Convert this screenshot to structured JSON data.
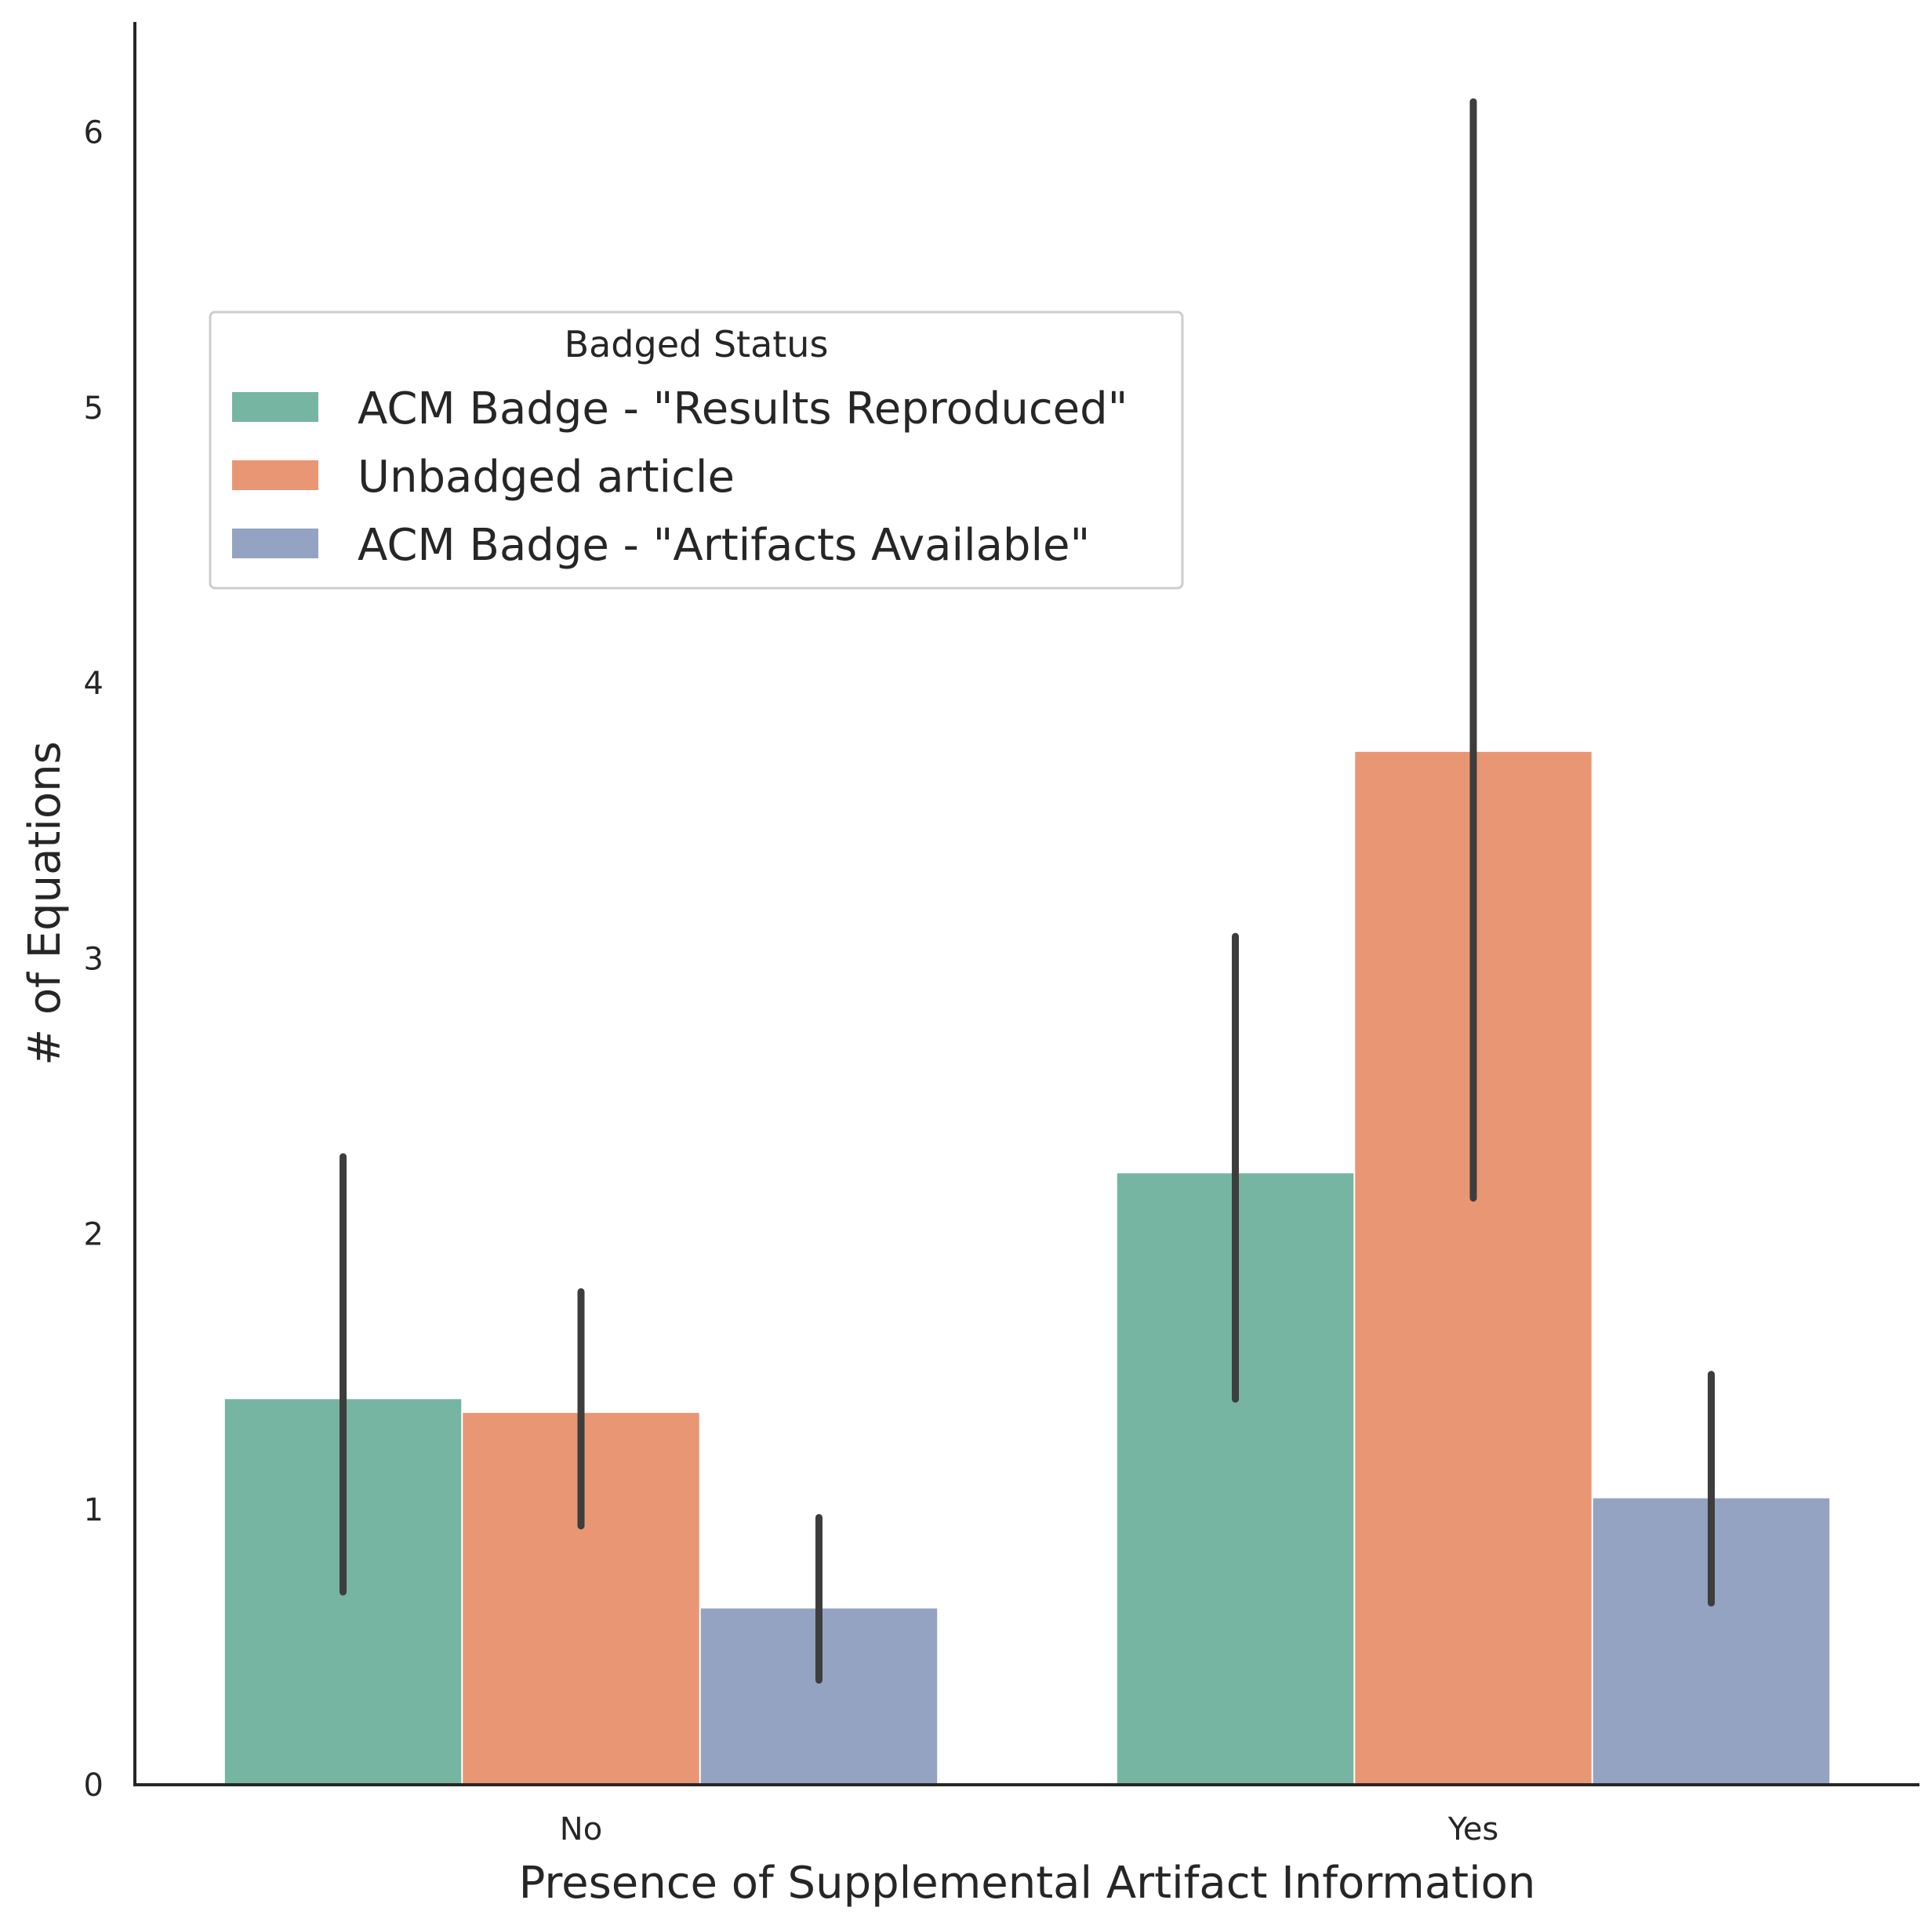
{
  "chart_data": {
    "type": "bar",
    "categories": [
      "No",
      "Yes"
    ],
    "xlabel": "Presence of Supplemental Artifact Information",
    "ylabel": "# of Equations",
    "ylim": [
      0,
      6.4
    ],
    "yticks": [
      0,
      1,
      2,
      3,
      4,
      5,
      6
    ],
    "grid": false,
    "legend": {
      "title": "Badged Status",
      "placement": "upper-left"
    },
    "series": [
      {
        "name": "ACM Badge - \"Results Reproduced\"",
        "color": "#76b5a1",
        "values": [
          1.4,
          2.22
        ],
        "error_low": [
          0.7,
          1.4
        ],
        "error_high": [
          2.28,
          3.08
        ]
      },
      {
        "name": "Unbadged article",
        "color": "#e89674",
        "values": [
          1.35,
          3.75
        ],
        "error_low": [
          0.94,
          2.13
        ],
        "error_high": [
          1.79,
          6.11
        ]
      },
      {
        "name": "ACM Badge - \"Artifacts Available\"",
        "color": "#94a3c2",
        "values": [
          0.64,
          1.04
        ],
        "error_low": [
          0.38,
          0.66
        ],
        "error_high": [
          0.97,
          1.49
        ]
      }
    ]
  }
}
